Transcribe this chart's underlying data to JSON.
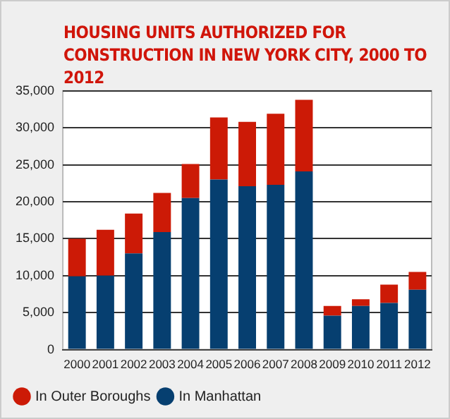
{
  "chart_data": {
    "type": "bar",
    "title": "HOUSING UNITS AUTHORIZED FOR CONSTRUCTION IN NEW YORK CITY, 2000 TO 2012",
    "categories": [
      "2000",
      "2001",
      "2002",
      "2003",
      "2004",
      "2005",
      "2006",
      "2007",
      "2008",
      "2009",
      "2010",
      "2011",
      "2012"
    ],
    "series": [
      {
        "name": "In Manhattan",
        "color": "#063f70",
        "values": [
          9900,
          10000,
          13000,
          15900,
          20500,
          23000,
          22100,
          22300,
          24100,
          4600,
          5900,
          6300,
          8100
        ]
      },
      {
        "name": "In Outer Boroughs",
        "color": "#cc1a06",
        "values": [
          5100,
          6200,
          5400,
          5300,
          4600,
          8400,
          8700,
          9600,
          9700,
          1300,
          900,
          2500,
          2400
        ]
      }
    ],
    "stacked": true,
    "ylim": [
      0,
      35000
    ],
    "yticks": [
      0,
      {
        "value": 5000,
        "label": "5,000"
      },
      {
        "value": 10000,
        "label": "10,000"
      },
      {
        "value": 15000,
        "label": "15,000"
      },
      {
        "value": 20000,
        "label": "20,000"
      },
      {
        "value": 25000,
        "label": "25,000"
      },
      {
        "value": 30000,
        "label": "30,000"
      },
      {
        "value": 35000,
        "label": "35,000"
      }
    ],
    "grid": "y",
    "legend": "bottom left"
  }
}
